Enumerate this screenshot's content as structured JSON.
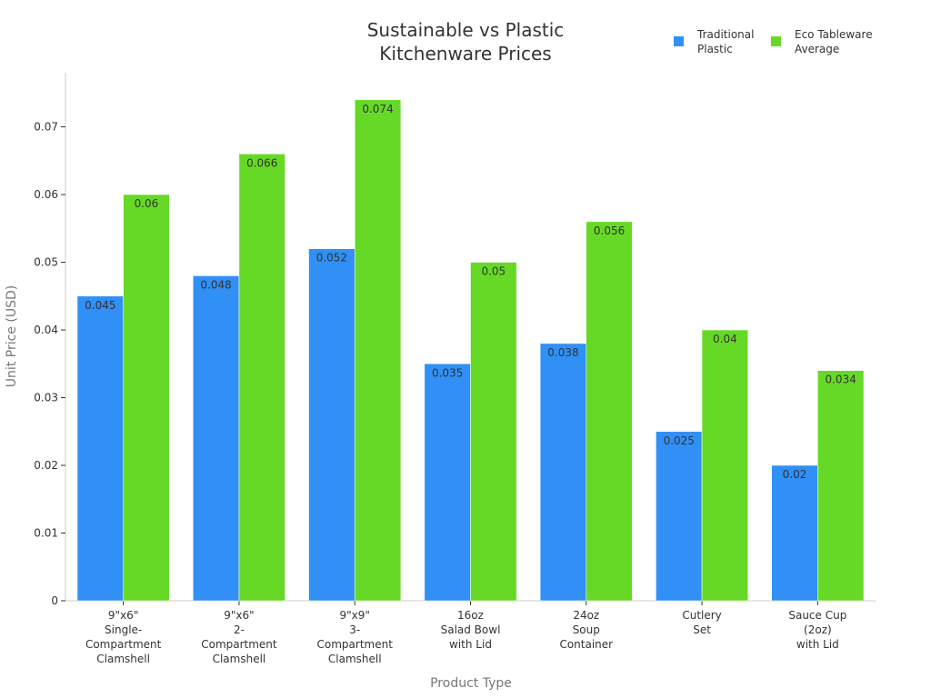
{
  "chart_data": {
    "type": "bar",
    "title": "Sustainable vs Plastic\nKitchenware Prices",
    "x_label": "Product Type",
    "y_label": "Unit Price (USD)",
    "categories": [
      "9\"x6\"\nSingle-\nCompartment\nClamshell",
      "9\"x6\"\n2-\nCompartment\nClamshell",
      "9\"x9\"\n3-\nCompartment\nClamshell",
      "16oz\nSalad Bowl\nwith Lid",
      "24oz\nSoup\nContainer",
      "Cutlery\nSet",
      "Sauce Cup\n(2oz)\nwith Lid"
    ],
    "series": [
      {
        "name": "Traditional\nPlastic",
        "color": "#3090f5",
        "values": [
          0.045,
          0.048,
          0.052,
          0.035,
          0.038,
          0.025,
          0.02
        ]
      },
      {
        "name": "Eco Tableware\nAverage",
        "color": "#66d926",
        "values": [
          0.06,
          0.066,
          0.074,
          0.05,
          0.056,
          0.04,
          0.034
        ]
      }
    ],
    "ylim": [
      0,
      0.078
    ],
    "yticks": [
      0,
      0.01,
      0.02,
      0.03,
      0.04,
      0.05,
      0.06,
      0.07
    ],
    "legend": "top-right"
  }
}
